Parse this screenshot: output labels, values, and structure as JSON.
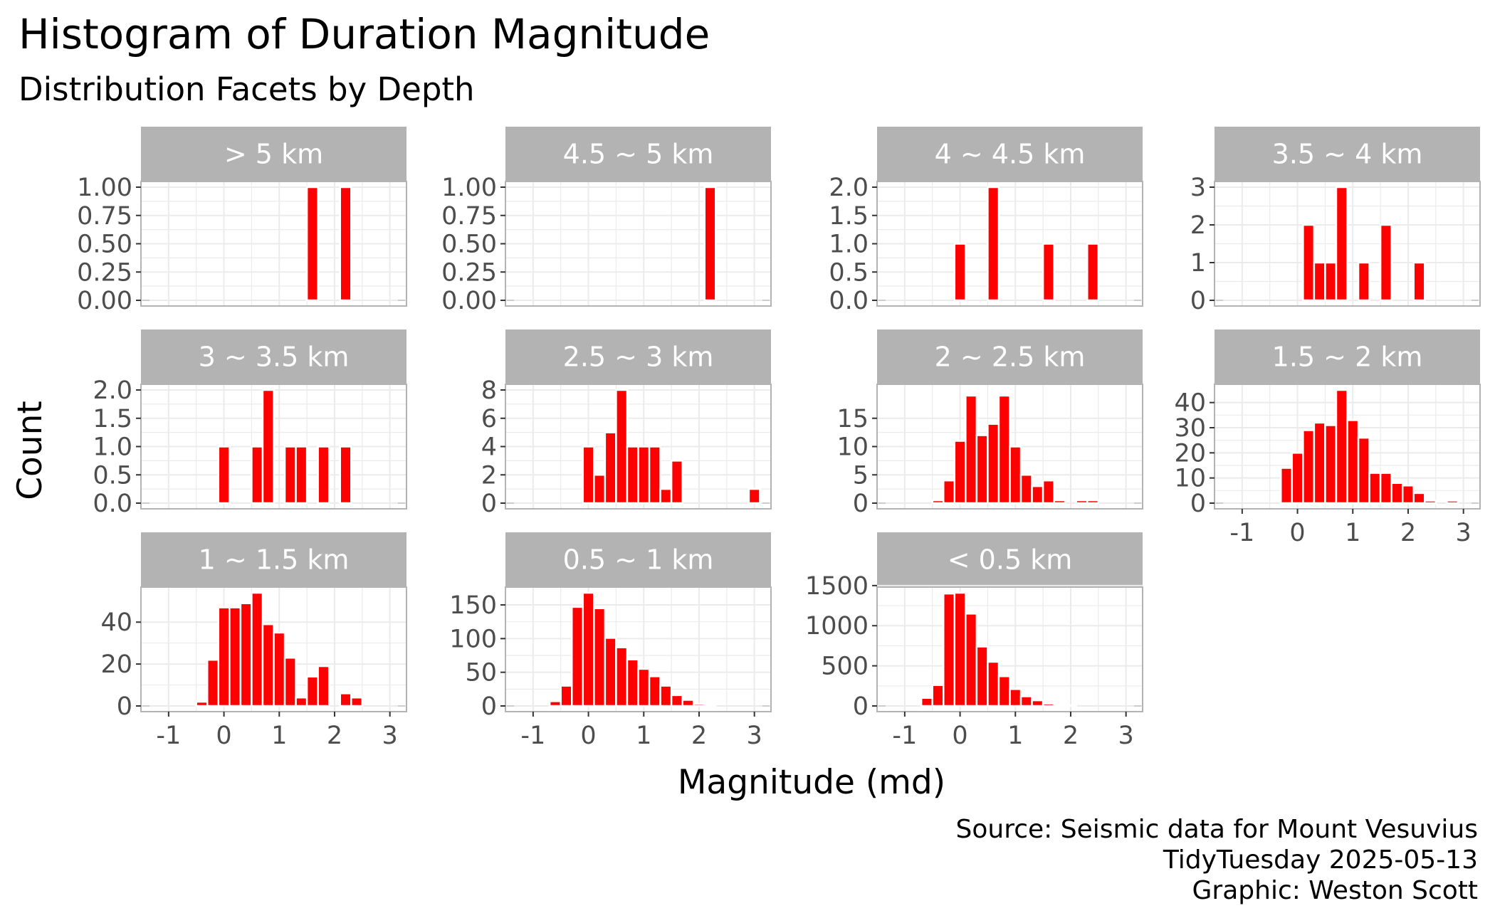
{
  "chart_data": {
    "type": "bar",
    "title": "Histogram of Duration Magnitude",
    "subtitle": "Distribution Facets by Depth",
    "xlabel": "Magnitude (md)",
    "ylabel": "Count",
    "caption": [
      "Source: Seismic data for Mount Vesuvius",
      "TidyTuesday 2025-05-13",
      "Graphic: Weston Scott"
    ],
    "bar_color": "#ff0000",
    "strip_color": "#b3b3b3",
    "grid": true,
    "xlim": [
      -1.5,
      3.3
    ],
    "x_ticks": [
      -1,
      0,
      1,
      2,
      3
    ],
    "x_tick_labels": [
      "-1",
      "0",
      "1",
      "2",
      "3"
    ],
    "bin_width": 0.2,
    "facets": [
      {
        "label": "> 5 km",
        "ymax": 1,
        "yticks": [
          0,
          0.25,
          0.5,
          0.75,
          1
        ],
        "ytick_labels": [
          "0.00",
          "0.25",
          "0.50",
          "0.75",
          "1.00"
        ],
        "bins": [
          [
            1.6,
            1
          ],
          [
            2.2,
            1
          ]
        ]
      },
      {
        "label": "4.5 ~ 5 km",
        "ymax": 1,
        "yticks": [
          0,
          0.25,
          0.5,
          0.75,
          1
        ],
        "ytick_labels": [
          "0.00",
          "0.25",
          "0.50",
          "0.75",
          "1.00"
        ],
        "bins": [
          [
            2.2,
            1
          ]
        ]
      },
      {
        "label": "4 ~ 4.5 km",
        "ymax": 2,
        "yticks": [
          0,
          0.5,
          1,
          1.5,
          2
        ],
        "ytick_labels": [
          "0.0",
          "0.5",
          "1.0",
          "1.5",
          "2.0"
        ],
        "bins": [
          [
            0,
            1
          ],
          [
            0.6,
            2
          ],
          [
            1.6,
            1
          ],
          [
            2.4,
            1
          ]
        ]
      },
      {
        "label": "3.5 ~ 4 km",
        "ymax": 3,
        "yticks": [
          0,
          1,
          2,
          3
        ],
        "ytick_labels": [
          "0",
          "1",
          "2",
          "3"
        ],
        "bins": [
          [
            0.2,
            2
          ],
          [
            0.4,
            1
          ],
          [
            0.6,
            1
          ],
          [
            0.8,
            3
          ],
          [
            1.2,
            1
          ],
          [
            1.6,
            2
          ],
          [
            2.2,
            1
          ]
        ]
      },
      {
        "label": "3 ~ 3.5 km",
        "ymax": 2,
        "yticks": [
          0,
          0.5,
          1,
          1.5,
          2
        ],
        "ytick_labels": [
          "0.0",
          "0.5",
          "1.0",
          "1.5",
          "2.0"
        ],
        "bins": [
          [
            0,
            1
          ],
          [
            0.6,
            1
          ],
          [
            0.8,
            2
          ],
          [
            1.2,
            1
          ],
          [
            1.4,
            1
          ],
          [
            1.8,
            1
          ],
          [
            2.2,
            1
          ]
        ]
      },
      {
        "label": "2.5 ~ 3 km",
        "ymax": 8,
        "yticks": [
          0,
          2,
          4,
          6,
          8
        ],
        "ytick_labels": [
          "0",
          "2",
          "4",
          "6",
          "8"
        ],
        "bins": [
          [
            0,
            4
          ],
          [
            0.2,
            2
          ],
          [
            0.4,
            5
          ],
          [
            0.6,
            8
          ],
          [
            0.8,
            4
          ],
          [
            1,
            4
          ],
          [
            1.2,
            4
          ],
          [
            1.4,
            1
          ],
          [
            1.6,
            3
          ],
          [
            3,
            1
          ]
        ]
      },
      {
        "label": "2 ~ 2.5 km",
        "ymax": 20,
        "yticks": [
          0,
          5,
          10,
          15
        ],
        "ytick_labels": [
          "0",
          "5",
          "10",
          "15"
        ],
        "bins": [
          [
            -0.4,
            0.5
          ],
          [
            -0.2,
            4
          ],
          [
            0,
            11
          ],
          [
            0.2,
            19
          ],
          [
            0.4,
            12
          ],
          [
            0.6,
            14
          ],
          [
            0.8,
            19
          ],
          [
            1,
            10
          ],
          [
            1.2,
            5
          ],
          [
            1.4,
            3
          ],
          [
            1.6,
            4
          ],
          [
            1.8,
            0.5
          ],
          [
            2.2,
            0.5
          ],
          [
            2.4,
            0.5
          ]
        ]
      },
      {
        "label": "1.5 ~ 2 km",
        "ymax": 45,
        "yticks": [
          0,
          10,
          20,
          30,
          40
        ],
        "ytick_labels": [
          "0",
          "10",
          "20",
          "30",
          "40"
        ],
        "bins": [
          [
            -0.2,
            14
          ],
          [
            0,
            20
          ],
          [
            0.2,
            29
          ],
          [
            0.4,
            32
          ],
          [
            0.6,
            31
          ],
          [
            0.8,
            45
          ],
          [
            1,
            33
          ],
          [
            1.2,
            26
          ],
          [
            1.4,
            12
          ],
          [
            1.6,
            12
          ],
          [
            1.8,
            8
          ],
          [
            2,
            7
          ],
          [
            2.2,
            4
          ],
          [
            2.4,
            1
          ],
          [
            2.8,
            1
          ]
        ]
      },
      {
        "label": "1 ~ 1.5 km",
        "ymax": 54,
        "yticks": [
          0,
          20,
          40
        ],
        "ytick_labels": [
          "0",
          "20",
          "40"
        ],
        "bins": [
          [
            -0.4,
            2
          ],
          [
            -0.2,
            22
          ],
          [
            0,
            47
          ],
          [
            0.2,
            47
          ],
          [
            0.4,
            49
          ],
          [
            0.6,
            54
          ],
          [
            0.8,
            39
          ],
          [
            1,
            35
          ],
          [
            1.2,
            23
          ],
          [
            1.4,
            4
          ],
          [
            1.6,
            14
          ],
          [
            1.8,
            19
          ],
          [
            2.2,
            6
          ],
          [
            2.4,
            4
          ]
        ]
      },
      {
        "label": "0.5 ~ 1 km",
        "ymax": 168,
        "yticks": [
          0,
          50,
          100,
          150
        ],
        "ytick_labels": [
          "0",
          "50",
          "100",
          "150"
        ],
        "bins": [
          [
            -0.6,
            7
          ],
          [
            -0.4,
            30
          ],
          [
            -0.2,
            147
          ],
          [
            0,
            168
          ],
          [
            0.2,
            145
          ],
          [
            0.4,
            101
          ],
          [
            0.6,
            87
          ],
          [
            0.8,
            69
          ],
          [
            1,
            55
          ],
          [
            1.2,
            44
          ],
          [
            1.4,
            30
          ],
          [
            1.6,
            16
          ],
          [
            1.8,
            9
          ],
          [
            2,
            3
          ],
          [
            2.2,
            1
          ]
        ]
      },
      {
        "label": "< 0.5 km",
        "ymax": 1410,
        "yticks": [
          0,
          500,
          1000,
          1500
        ],
        "ytick_labels": [
          "0",
          "500",
          "1000",
          "1500"
        ],
        "bins": [
          [
            -0.6,
            100
          ],
          [
            -0.4,
            260
          ],
          [
            -0.2,
            1400
          ],
          [
            0,
            1410
          ],
          [
            0.2,
            1150
          ],
          [
            0.4,
            740
          ],
          [
            0.6,
            550
          ],
          [
            0.8,
            370
          ],
          [
            1,
            210
          ],
          [
            1.2,
            120
          ],
          [
            1.4,
            70
          ],
          [
            1.6,
            30
          ],
          [
            1.8,
            15
          ],
          [
            2,
            5
          ]
        ]
      }
    ]
  }
}
